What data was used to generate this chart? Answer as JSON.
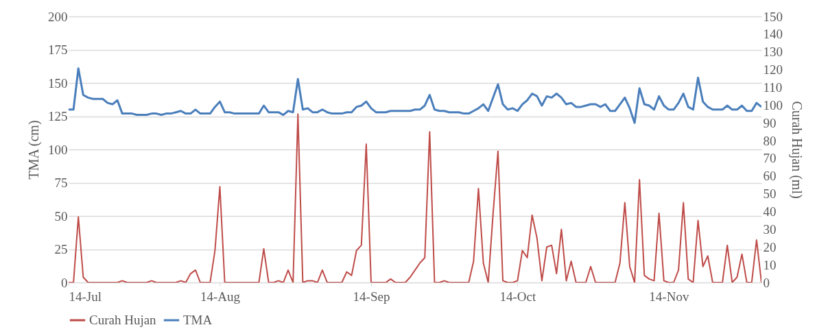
{
  "chart_data": {
    "type": "line",
    "ylabel": "TMA (cm)",
    "y2label": "Curah Hujan (ml)",
    "x": [
      "--07-14",
      "--07-15",
      "--07-16",
      "--07-17",
      "--07-18",
      "--07-19",
      "--07-20",
      "--07-21",
      "--07-22",
      "--07-23",
      "--07-24",
      "--07-25",
      "--07-26",
      "--07-27",
      "--07-28",
      "--07-29",
      "--07-30",
      "--07-31",
      "--08-01",
      "--08-02",
      "--08-03",
      "--08-04",
      "--08-05",
      "--08-06",
      "--08-07",
      "--08-08",
      "--08-09",
      "--08-10",
      "--08-11",
      "--08-12",
      "--08-13",
      "--08-14",
      "--08-15",
      "--08-16",
      "--08-17",
      "--08-18",
      "--08-19",
      "--08-20",
      "--08-21",
      "--08-22",
      "--08-23",
      "--08-24",
      "--08-25",
      "--08-26",
      "--08-27",
      "--08-28",
      "--08-29",
      "--08-30",
      "--08-31",
      "--09-01",
      "--09-02",
      "--09-03",
      "--09-04",
      "--09-05",
      "--09-06",
      "--09-07",
      "--09-08",
      "--09-09",
      "--09-10",
      "--09-11",
      "--09-12",
      "--09-13",
      "--09-14",
      "--09-15",
      "--09-16",
      "--09-17",
      "--09-18",
      "--09-19",
      "--09-20",
      "--09-21",
      "--09-22",
      "--09-23",
      "--09-24",
      "--09-25",
      "--09-26",
      "--09-27",
      "--09-28",
      "--09-29",
      "--09-30",
      "--10-01",
      "--10-02",
      "--10-03",
      "--10-04",
      "--10-05",
      "--10-06",
      "--10-07",
      "--10-08",
      "--10-09",
      "--10-10",
      "--10-11",
      "--10-12",
      "--10-13",
      "--10-14",
      "--10-15",
      "--10-16",
      "--10-17",
      "--10-18",
      "--10-19",
      "--10-20",
      "--10-21",
      "--10-22",
      "--10-23",
      "--10-24",
      "--10-25",
      "--10-26",
      "--10-27",
      "--10-28",
      "--10-29",
      "--10-30",
      "--10-31",
      "--11-01",
      "--11-02",
      "--11-03",
      "--11-04",
      "--11-05",
      "--11-06",
      "--11-07",
      "--11-08",
      "--11-09",
      "--11-10",
      "--11-11",
      "--11-12",
      "--11-13",
      "--11-14",
      "--11-15",
      "--11-16",
      "--11-17",
      "--11-18",
      "--11-19",
      "--11-20",
      "--11-21",
      "--11-22",
      "--11-23",
      "--11-24",
      "--11-25",
      "--11-26",
      "--11-27",
      "--11-28",
      "--11-29",
      "--11-30",
      "--12-01",
      "--12-02",
      "--12-03"
    ],
    "series": [
      {
        "name": "Curah Hujan",
        "color": "#be4b48",
        "axis": "y2",
        "values": [
          0,
          0,
          37,
          3,
          0,
          0,
          0,
          0,
          0,
          0,
          0,
          1,
          0,
          0,
          0,
          0,
          0,
          1,
          0,
          0,
          0,
          0,
          0,
          1,
          0,
          5,
          7,
          0,
          0,
          0,
          18,
          54,
          0,
          0,
          0,
          0,
          0,
          0,
          0,
          0,
          19,
          0,
          0,
          1,
          0,
          7,
          0,
          95,
          0,
          1,
          1,
          0,
          7,
          0,
          0,
          0,
          0,
          6,
          4,
          18,
          21,
          78,
          0,
          0,
          0,
          0,
          2,
          0,
          0,
          0,
          3,
          7,
          11,
          14,
          85,
          0,
          0,
          1,
          0,
          0,
          0,
          0,
          0,
          12,
          53,
          11,
          0,
          39,
          74,
          1,
          0,
          0,
          1,
          18,
          14,
          38,
          25,
          1,
          20,
          21,
          5,
          30,
          1,
          12,
          0,
          0,
          0,
          9,
          0,
          0,
          0,
          0,
          0,
          11,
          45,
          9,
          0,
          58,
          4,
          2,
          1,
          39,
          1,
          0,
          0,
          7,
          45,
          2,
          0,
          35,
          9,
          15,
          0,
          0,
          0,
          21,
          0,
          3,
          16,
          0,
          0,
          24,
          0
        ]
      },
      {
        "name": "TMA",
        "color": "#4a7ebb",
        "values": [
          130,
          130,
          161,
          141,
          139,
          138,
          138,
          138,
          135,
          134,
          137,
          127,
          127,
          127,
          126,
          126,
          126,
          127,
          127,
          126,
          127,
          127,
          128,
          129,
          127,
          127,
          130,
          127,
          127,
          127,
          132,
          136,
          128,
          128,
          127,
          127,
          127,
          127,
          127,
          127,
          133,
          128,
          128,
          128,
          126,
          129,
          128,
          153,
          130,
          131,
          128,
          128,
          130,
          128,
          127,
          127,
          127,
          128,
          128,
          132,
          133,
          136,
          131,
          128,
          128,
          128,
          129,
          129,
          129,
          129,
          129,
          130,
          130,
          133,
          141,
          130,
          129,
          129,
          128,
          128,
          128,
          127,
          127,
          129,
          131,
          134,
          129,
          139,
          149,
          134,
          130,
          131,
          129,
          134,
          137,
          142,
          140,
          133,
          140,
          139,
          142,
          139,
          134,
          135,
          132,
          132,
          133,
          134,
          134,
          132,
          134,
          129,
          129,
          134,
          139,
          131,
          120,
          146,
          134,
          133,
          130,
          140,
          133,
          130,
          130,
          135,
          142,
          132,
          130,
          154,
          136,
          132,
          130,
          130,
          130,
          133,
          130,
          130,
          133,
          129,
          129,
          135,
          132
        ]
      }
    ],
    "xlim": [
      "--07-14",
      "--12-03"
    ],
    "xticks": [
      {
        "value": "--07-14",
        "label": "14-Jul"
      },
      {
        "value": "--08-14",
        "label": "14-Aug"
      },
      {
        "value": "--09-14",
        "label": "14-Sep"
      },
      {
        "value": "--10-14",
        "label": "14-Oct"
      },
      {
        "value": "--11-14",
        "label": "14-Nov"
      }
    ],
    "ylim": [
      0,
      200
    ],
    "yticks": [
      0,
      25,
      50,
      75,
      100,
      125,
      150,
      175,
      200
    ],
    "y2lim": [
      0,
      150
    ],
    "y2ticks": [
      0,
      10,
      20,
      30,
      40,
      50,
      60,
      70,
      80,
      90,
      100,
      110,
      120,
      130,
      140,
      150
    ],
    "grid": "y",
    "legend": "bottom"
  }
}
